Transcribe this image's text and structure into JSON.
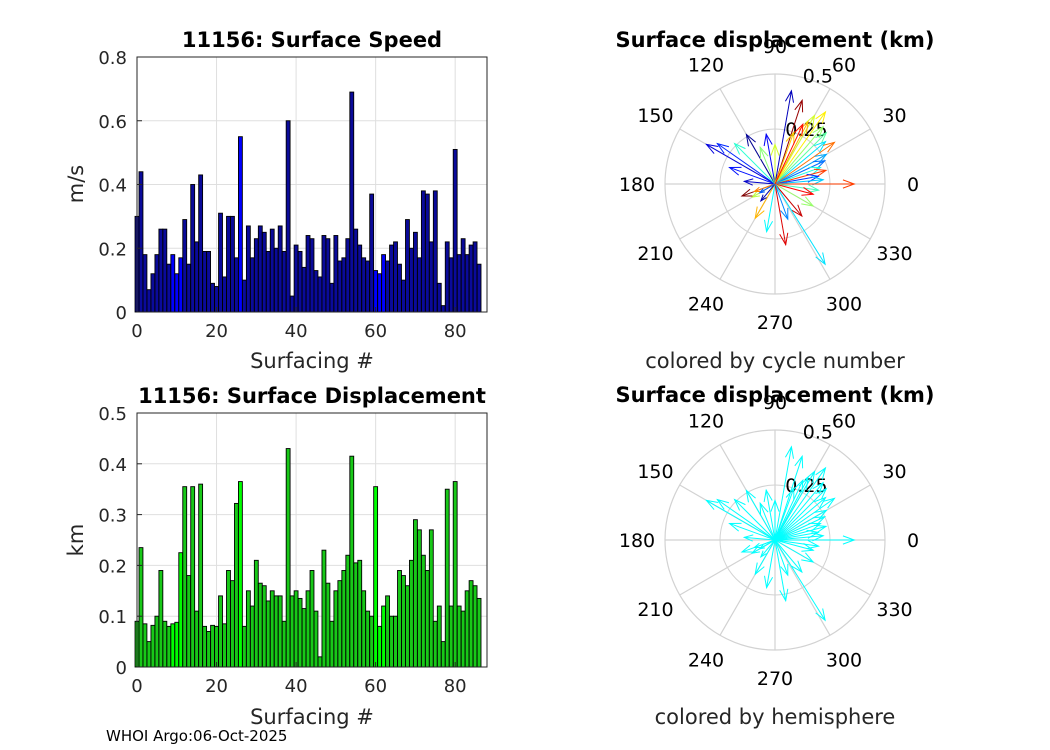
{
  "footer": "WHOI Argo:06-Oct-2025",
  "chart_data": [
    {
      "id": "speed",
      "type": "bar",
      "title": "11156: Surface Speed",
      "xlabel": "Surfacing #",
      "ylabel": "m/s",
      "xlim": [
        0,
        88
      ],
      "ylim": [
        0,
        0.8
      ],
      "xticks": [
        "0",
        "20",
        "40",
        "60",
        "80"
      ],
      "yticks": [
        "0",
        "0.2",
        "0.4",
        "0.6",
        "0.8"
      ],
      "bar_color": "#0a0a9a",
      "highlight_color": "#0000ff",
      "highlight_x": [
        9,
        10,
        11,
        26,
        60,
        61,
        62
      ],
      "x": [
        0,
        1,
        2,
        3,
        4,
        5,
        6,
        7,
        8,
        9,
        10,
        11,
        12,
        13,
        14,
        15,
        16,
        17,
        18,
        19,
        20,
        21,
        22,
        23,
        24,
        25,
        26,
        27,
        28,
        29,
        30,
        31,
        32,
        33,
        34,
        35,
        36,
        37,
        38,
        39,
        40,
        41,
        42,
        43,
        44,
        45,
        46,
        47,
        48,
        49,
        50,
        51,
        52,
        53,
        54,
        55,
        56,
        57,
        58,
        59,
        60,
        61,
        62,
        63,
        64,
        65,
        66,
        67,
        68,
        69,
        70,
        71,
        72,
        73,
        74,
        75,
        76,
        77,
        78,
        79,
        80,
        81,
        82,
        83,
        84,
        85,
        86
      ],
      "values": [
        0.3,
        0.44,
        0.18,
        0.07,
        0.12,
        0.18,
        0.26,
        0.26,
        0.15,
        0.18,
        0.12,
        0.17,
        0.29,
        0.15,
        0.4,
        0.22,
        0.43,
        0.19,
        0.19,
        0.09,
        0.08,
        0.31,
        0.11,
        0.3,
        0.3,
        0.17,
        0.55,
        0.1,
        0.27,
        0.17,
        0.23,
        0.27,
        0.25,
        0.19,
        0.26,
        0.2,
        0.27,
        0.19,
        0.6,
        0.05,
        0.21,
        0.19,
        0.14,
        0.24,
        0.23,
        0.13,
        0.11,
        0.24,
        0.23,
        0.09,
        0.24,
        0.16,
        0.17,
        0.23,
        0.69,
        0.26,
        0.21,
        0.17,
        0.16,
        0.37,
        0.13,
        0.12,
        0.18,
        0.16,
        0.21,
        0.22,
        0.15,
        0.1,
        0.29,
        0.2,
        0.25,
        0.17,
        0.38,
        0.37,
        0.22,
        0.38,
        0.09,
        0.02,
        0.22,
        0.17,
        0.51,
        0.18,
        0.23,
        0.18,
        0.21,
        0.22,
        0.15
      ]
    },
    {
      "id": "displacement",
      "type": "bar",
      "title": "11156: Surface Displacement",
      "xlabel": "Surfacing #",
      "ylabel": "km",
      "xlim": [
        0,
        88
      ],
      "ylim": [
        0,
        0.5
      ],
      "xticks": [
        "0",
        "20",
        "40",
        "60",
        "80"
      ],
      "yticks": [
        "0",
        "0.1",
        "0.2",
        "0.3",
        "0.4",
        "0.5"
      ],
      "bar_color": "#18c818",
      "highlight_color": "#00ff00",
      "highlight_x": [
        9,
        10,
        11,
        26,
        60,
        61,
        62
      ],
      "x": [
        0,
        1,
        2,
        3,
        4,
        5,
        6,
        7,
        8,
        9,
        10,
        11,
        12,
        13,
        14,
        15,
        16,
        17,
        18,
        19,
        20,
        21,
        22,
        23,
        24,
        25,
        26,
        27,
        28,
        29,
        30,
        31,
        32,
        33,
        34,
        35,
        36,
        37,
        38,
        39,
        40,
        41,
        42,
        43,
        44,
        45,
        46,
        47,
        48,
        49,
        50,
        51,
        52,
        53,
        54,
        55,
        56,
        57,
        58,
        59,
        60,
        61,
        62,
        63,
        64,
        65,
        66,
        67,
        68,
        69,
        70,
        71,
        72,
        73,
        74,
        75,
        76,
        77,
        78,
        79,
        80,
        81,
        82,
        83,
        84,
        85,
        86
      ],
      "values": [
        0.09,
        0.235,
        0.085,
        0.05,
        0.082,
        0.1,
        0.19,
        0.09,
        0.08,
        0.085,
        0.088,
        0.225,
        0.355,
        0.18,
        0.355,
        0.11,
        0.36,
        0.08,
        0.07,
        0.082,
        0.08,
        0.14,
        0.085,
        0.19,
        0.17,
        0.322,
        0.365,
        0.08,
        0.15,
        0.12,
        0.21,
        0.165,
        0.16,
        0.13,
        0.15,
        0.14,
        0.14,
        0.09,
        0.43,
        0.14,
        0.15,
        0.135,
        0.115,
        0.15,
        0.19,
        0.11,
        0.02,
        0.23,
        0.165,
        0.09,
        0.15,
        0.17,
        0.19,
        0.22,
        0.415,
        0.205,
        0.21,
        0.15,
        0.11,
        0.1,
        0.355,
        0.08,
        0.12,
        0.14,
        0.1,
        0.1,
        0.19,
        0.18,
        0.16,
        0.21,
        0.29,
        0.27,
        0.22,
        0.19,
        0.27,
        0.09,
        0.12,
        0.05,
        0.35,
        0.12,
        0.365,
        0.12,
        0.11,
        0.15,
        0.17,
        0.16,
        0.135
      ]
    },
    {
      "id": "polar-cycle",
      "type": "polar-vector",
      "title": "Surface displacement (km)",
      "note": "colored by cycle number",
      "rlim": [
        0,
        0.5
      ],
      "rticks": [
        "0.25",
        "0.5"
      ],
      "angle_labels": [
        "0",
        "30",
        "60",
        "90",
        "120",
        "150",
        "180",
        "210",
        "240",
        "270",
        "300",
        "330"
      ],
      "colormap": "jet",
      "vectors": [
        {
          "angle": 80,
          "r": 0.43,
          "cycle": 5
        },
        {
          "angle": 72,
          "r": 0.4,
          "cycle": 84
        },
        {
          "angle": 60,
          "r": 0.36,
          "cycle": 50
        },
        {
          "angle": 55,
          "r": 0.4,
          "cycle": 55
        },
        {
          "angle": 62,
          "r": 0.32,
          "cycle": 60
        },
        {
          "angle": 50,
          "r": 0.34,
          "cycle": 45
        },
        {
          "angle": 45,
          "r": 0.33,
          "cycle": 40
        },
        {
          "angle": 40,
          "r": 0.3,
          "cycle": 30
        },
        {
          "angle": 35,
          "r": 0.33,
          "cycle": 66
        },
        {
          "angle": 30,
          "r": 0.27,
          "cycle": 25
        },
        {
          "angle": 25,
          "r": 0.25,
          "cycle": 20
        },
        {
          "angle": 20,
          "r": 0.22,
          "cycle": 35
        },
        {
          "angle": 15,
          "r": 0.24,
          "cycle": 70
        },
        {
          "angle": 10,
          "r": 0.2,
          "cycle": 15
        },
        {
          "angle": 5,
          "r": 0.22,
          "cycle": 28
        },
        {
          "angle": 0,
          "r": 0.36,
          "cycle": 70
        },
        {
          "angle": -8,
          "r": 0.2,
          "cycle": 38
        },
        {
          "angle": -15,
          "r": 0.18,
          "cycle": 75
        },
        {
          "angle": -30,
          "r": 0.2,
          "cycle": 45
        },
        {
          "angle": -50,
          "r": 0.19,
          "cycle": 80
        },
        {
          "angle": -58,
          "r": 0.43,
          "cycle": 30
        },
        {
          "angle": -70,
          "r": 0.17,
          "cycle": 22
        },
        {
          "angle": -80,
          "r": 0.28,
          "cycle": 78
        },
        {
          "angle": -100,
          "r": 0.22,
          "cycle": 32
        },
        {
          "angle": -120,
          "r": 0.18,
          "cycle": 60
        },
        {
          "angle": -130,
          "r": 0.1,
          "cycle": 4
        },
        {
          "angle": -150,
          "r": 0.12,
          "cycle": 48
        },
        {
          "angle": -160,
          "r": 0.16,
          "cycle": 86
        },
        {
          "angle": 175,
          "r": 0.14,
          "cycle": 6
        },
        {
          "angle": 160,
          "r": 0.22,
          "cycle": 12
        },
        {
          "angle": 150,
          "r": 0.36,
          "cycle": 8
        },
        {
          "angle": 145,
          "r": 0.32,
          "cycle": 14
        },
        {
          "angle": 135,
          "r": 0.26,
          "cycle": 36
        },
        {
          "angle": 120,
          "r": 0.26,
          "cycle": 2
        },
        {
          "angle": 112,
          "r": 0.18,
          "cycle": 44
        },
        {
          "angle": 100,
          "r": 0.23,
          "cycle": 10
        },
        {
          "angle": 90,
          "r": 0.18,
          "cycle": 50
        },
        {
          "angle": 70,
          "r": 0.25,
          "cycle": 58
        },
        {
          "angle": 65,
          "r": 0.3,
          "cycle": 74
        },
        {
          "angle": 200,
          "r": 0.1,
          "cycle": 64
        },
        {
          "angle": 210,
          "r": 0.08,
          "cycle": 18
        }
      ]
    },
    {
      "id": "polar-hemisphere",
      "type": "polar-vector",
      "title": "Surface displacement (km)",
      "note": "colored by hemisphere",
      "rlim": [
        0,
        0.5
      ],
      "rticks": [
        "0.25",
        "0.5"
      ],
      "angle_labels": [
        "0",
        "30",
        "60",
        "90",
        "120",
        "150",
        "180",
        "210",
        "240",
        "270",
        "300",
        "330"
      ],
      "color": "#00ffff",
      "vectors": [
        {
          "angle": 80,
          "r": 0.43
        },
        {
          "angle": 72,
          "r": 0.4
        },
        {
          "angle": 60,
          "r": 0.36
        },
        {
          "angle": 55,
          "r": 0.4
        },
        {
          "angle": 62,
          "r": 0.32
        },
        {
          "angle": 50,
          "r": 0.34
        },
        {
          "angle": 45,
          "r": 0.33
        },
        {
          "angle": 40,
          "r": 0.3
        },
        {
          "angle": 35,
          "r": 0.33
        },
        {
          "angle": 30,
          "r": 0.27
        },
        {
          "angle": 25,
          "r": 0.25
        },
        {
          "angle": 20,
          "r": 0.22
        },
        {
          "angle": 15,
          "r": 0.24
        },
        {
          "angle": 10,
          "r": 0.2
        },
        {
          "angle": 5,
          "r": 0.22
        },
        {
          "angle": 0,
          "r": 0.36
        },
        {
          "angle": -8,
          "r": 0.2
        },
        {
          "angle": -15,
          "r": 0.18
        },
        {
          "angle": -30,
          "r": 0.2
        },
        {
          "angle": -50,
          "r": 0.19
        },
        {
          "angle": -58,
          "r": 0.43
        },
        {
          "angle": -70,
          "r": 0.17
        },
        {
          "angle": -80,
          "r": 0.28
        },
        {
          "angle": -100,
          "r": 0.22
        },
        {
          "angle": -120,
          "r": 0.18
        },
        {
          "angle": -130,
          "r": 0.1
        },
        {
          "angle": -150,
          "r": 0.12
        },
        {
          "angle": -160,
          "r": 0.16
        },
        {
          "angle": 175,
          "r": 0.14
        },
        {
          "angle": 160,
          "r": 0.22
        },
        {
          "angle": 150,
          "r": 0.36
        },
        {
          "angle": 145,
          "r": 0.32
        },
        {
          "angle": 135,
          "r": 0.26
        },
        {
          "angle": 120,
          "r": 0.26
        },
        {
          "angle": 112,
          "r": 0.18
        },
        {
          "angle": 100,
          "r": 0.23
        },
        {
          "angle": 90,
          "r": 0.18
        },
        {
          "angle": 70,
          "r": 0.25
        },
        {
          "angle": 65,
          "r": 0.3
        },
        {
          "angle": 200,
          "r": 0.1
        },
        {
          "angle": 210,
          "r": 0.08
        }
      ]
    }
  ]
}
